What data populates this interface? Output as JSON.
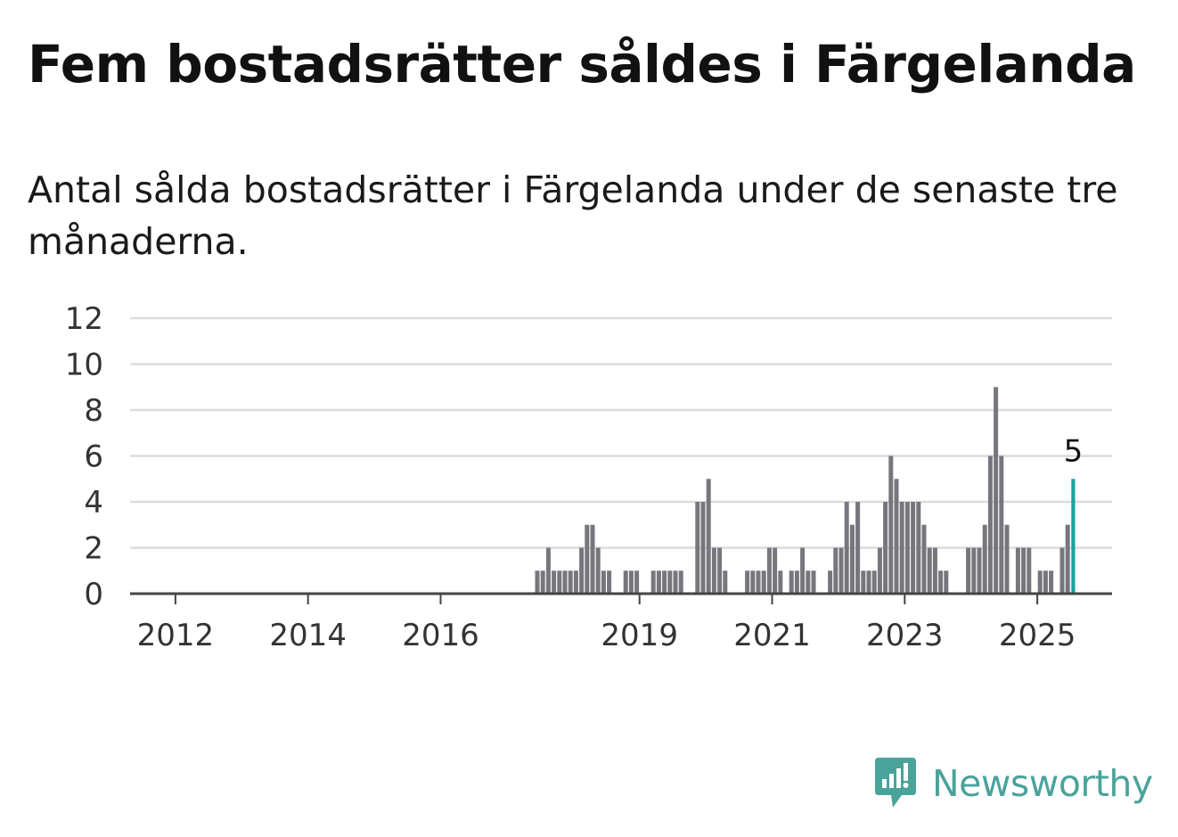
{
  "header": {
    "title": "Fem bostadsrätter såldes i Färgelanda",
    "subtitle": "Antal sålda bostadsrätter i Färgelanda under de senaste tre månaderna."
  },
  "brand": {
    "name": "Newsworthy",
    "color": "#4aa39b",
    "icon": "newsworthy-logo-icon"
  },
  "colors": {
    "bar": "#77767c",
    "highlight": "#17a39a",
    "grid": "#dcdcdc",
    "axis": "#444444"
  },
  "chart_data": {
    "type": "bar",
    "x_unit": "month",
    "x_start": "2011-03",
    "values": [
      0,
      0,
      0,
      0,
      0,
      0,
      0,
      0,
      0,
      0,
      0,
      0,
      0,
      0,
      0,
      0,
      0,
      0,
      0,
      0,
      0,
      0,
      0,
      0,
      0,
      0,
      0,
      0,
      0,
      0,
      0,
      0,
      0,
      0,
      0,
      0,
      0,
      0,
      0,
      0,
      0,
      0,
      0,
      0,
      0,
      0,
      0,
      0,
      0,
      0,
      0,
      0,
      0,
      0,
      0,
      0,
      0,
      0,
      0,
      0,
      0,
      0,
      0,
      0,
      0,
      0,
      0,
      0,
      0,
      0,
      0,
      0,
      0,
      0,
      0,
      1,
      1,
      2,
      1,
      1,
      1,
      1,
      1,
      2,
      3,
      3,
      2,
      1,
      1,
      0,
      0,
      1,
      1,
      1,
      0,
      0,
      1,
      1,
      1,
      1,
      1,
      1,
      0,
      0,
      4,
      4,
      5,
      2,
      2,
      1,
      0,
      0,
      0,
      1,
      1,
      1,
      1,
      2,
      2,
      1,
      0,
      1,
      1,
      2,
      1,
      1,
      0,
      0,
      1,
      2,
      2,
      4,
      3,
      4,
      1,
      1,
      1,
      2,
      4,
      6,
      5,
      4,
      4,
      4,
      4,
      3,
      2,
      2,
      1,
      1,
      0,
      0,
      0,
      2,
      2,
      2,
      3,
      6,
      9,
      6,
      3,
      0,
      2,
      2,
      2,
      0,
      1,
      1,
      1,
      0,
      2,
      3,
      5
    ],
    "highlight_last": true,
    "last_label": "5",
    "x_ticks": [
      "2012",
      "2014",
      "2016",
      "2019",
      "2021",
      "2023",
      "2025"
    ],
    "y_ticks": [
      0,
      2,
      4,
      6,
      8,
      10,
      12
    ],
    "ylim": [
      0,
      12
    ],
    "grid": true,
    "legend": "none"
  }
}
